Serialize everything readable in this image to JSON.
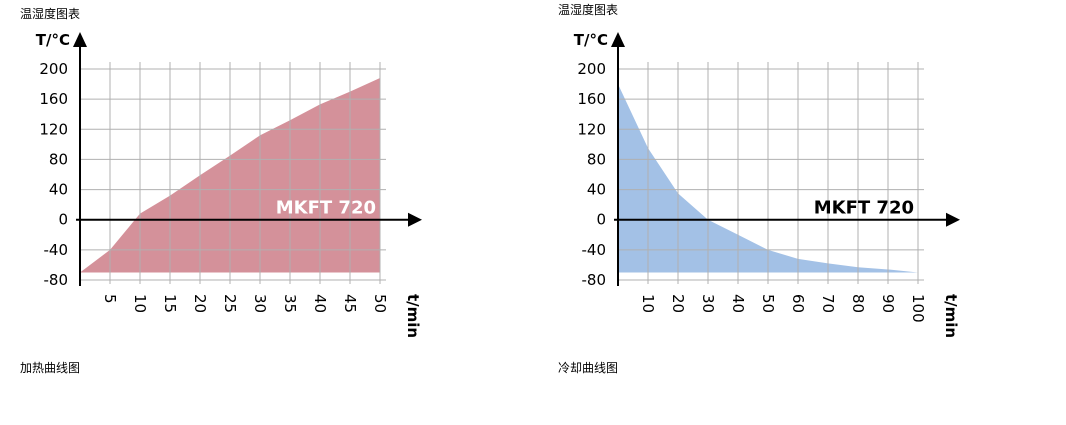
{
  "chart_data": [
    {
      "type": "area",
      "header": "温湿度图表",
      "caption": "加热曲线图",
      "annotation": "MKFT 720",
      "x_label": "t/min",
      "y_label": "T/°C",
      "x": [
        0,
        5,
        10,
        15,
        20,
        25,
        30,
        35,
        40,
        45,
        50
      ],
      "values": [
        -70,
        -40,
        8,
        32,
        59,
        85,
        112,
        132,
        153,
        170,
        188
      ],
      "fill_to": -70,
      "color": "#d4919a",
      "annotation_color": "#ffffff",
      "xlim": [
        0,
        51
      ],
      "ylim": [
        -80,
        200
      ],
      "xticks": [
        5,
        10,
        15,
        20,
        25,
        30,
        35,
        40,
        45,
        50
      ],
      "yticks": [
        -80,
        -40,
        0,
        40,
        80,
        120,
        160,
        200
      ],
      "grid": true
    },
    {
      "type": "area",
      "header": "温湿度图表",
      "caption": "冷却曲线图",
      "annotation": "MKFT 720",
      "x_label": "t/min",
      "y_label": "T/°C",
      "x": [
        0,
        10,
        20,
        30,
        40,
        50,
        60,
        70,
        80,
        90,
        100
      ],
      "values": [
        180,
        95,
        35,
        0,
        -20,
        -40,
        -52,
        -58,
        -63,
        -66,
        -70
      ],
      "fill_to": -70,
      "color": "#a3c1e6",
      "annotation_color": "#000000",
      "xlim": [
        0,
        102
      ],
      "ylim": [
        -80,
        200
      ],
      "xticks": [
        10,
        20,
        30,
        40,
        50,
        60,
        70,
        80,
        90,
        100
      ],
      "yticks": [
        -80,
        -40,
        0,
        40,
        80,
        120,
        160,
        200
      ],
      "grid": true
    }
  ]
}
